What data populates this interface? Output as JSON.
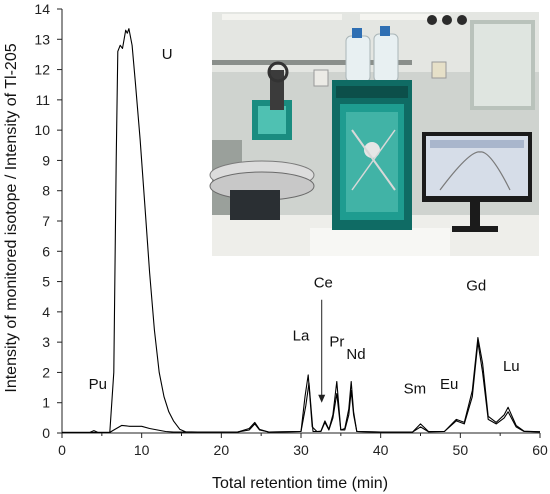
{
  "chart_data": {
    "type": "line",
    "xlabel": "Total retention time (min)",
    "ylabel": "Intensity of monitored isotope / Intensity of Tl-205",
    "xlim": [
      0,
      60
    ],
    "ylim": [
      0,
      14
    ],
    "xticks": [
      0,
      10,
      20,
      30,
      40,
      50,
      60
    ],
    "yticks": [
      0,
      1,
      2,
      3,
      4,
      5,
      6,
      7,
      8,
      9,
      10,
      11,
      12,
      13,
      14
    ],
    "grid": false,
    "series": [
      {
        "x": [
          0,
          3.5,
          4,
          4.5,
          6,
          6.5,
          6.8,
          7.0,
          7.3,
          7.6,
          7.8,
          8.0,
          8.2,
          8.4,
          8.8,
          9.2,
          9.8,
          10.4,
          11.0,
          11.6,
          12.2,
          12.8,
          13.4,
          14.0,
          14.8,
          15.5,
          17,
          22,
          23.5,
          24.2,
          24.8,
          26,
          30,
          30.6,
          31.0,
          31.5,
          32.5,
          33.0,
          33.5,
          34.0,
          34.5,
          35.0,
          35.5,
          36.0,
          36.3,
          36.6,
          37.0,
          40,
          44,
          45,
          46,
          48,
          49.5,
          50.5,
          51.5,
          52.2,
          52.8,
          53.5,
          54.5,
          55.5,
          56.0,
          57.0,
          58,
          60
        ],
        "y": [
          0.02,
          0.02,
          0.08,
          0.02,
          0.02,
          2.0,
          9.0,
          12.6,
          12.8,
          12.7,
          13.0,
          13.3,
          13.2,
          13.35,
          12.8,
          11.6,
          9.7,
          7.5,
          5.3,
          3.4,
          2.0,
          1.2,
          0.7,
          0.4,
          0.12,
          0.04,
          0.03,
          0.03,
          0.15,
          0.35,
          0.12,
          0.03,
          0.05,
          0.9,
          1.65,
          0.05,
          0.05,
          0.35,
          0.1,
          0.5,
          1.3,
          0.1,
          0.1,
          0.6,
          1.4,
          0.6,
          0.05,
          0.03,
          0.03,
          0.2,
          0.04,
          0.05,
          0.4,
          0.3,
          1.2,
          3.0,
          2.0,
          0.45,
          0.3,
          0.5,
          0.7,
          0.2,
          0.05,
          0.04
        ]
      },
      {
        "x": [
          0,
          6,
          6.5,
          7.5,
          8.5,
          10,
          11,
          12,
          13,
          14,
          16,
          22,
          23.5,
          24.2,
          24.8,
          26,
          30,
          30.5,
          30.9,
          31.4,
          32,
          32.5,
          33.0,
          33.5,
          34.0,
          34.5,
          35.0,
          35.5,
          36.0,
          36.3,
          36.6,
          37.0,
          40,
          44,
          45,
          46,
          48,
          49.5,
          50.5,
          51.5,
          52.2,
          52.8,
          53.5,
          54.5,
          55.5,
          56.0,
          57.0,
          58,
          60
        ],
        "y": [
          0.02,
          0.02,
          0.1,
          0.25,
          0.22,
          0.22,
          0.15,
          0.1,
          0.05,
          0.03,
          0.03,
          0.03,
          0.1,
          0.3,
          0.1,
          0.03,
          0.05,
          1.2,
          1.92,
          0.2,
          0.05,
          0.06,
          0.4,
          0.12,
          0.6,
          1.7,
          0.1,
          0.15,
          0.8,
          1.7,
          0.7,
          0.05,
          0.03,
          0.03,
          0.3,
          0.05,
          0.05,
          0.45,
          0.35,
          1.4,
          3.15,
          2.3,
          0.55,
          0.35,
          0.6,
          0.85,
          0.25,
          0.06,
          0.04
        ]
      }
    ],
    "annotations": [
      {
        "text": "Pu",
        "x": 4.5,
        "y": 1.45
      },
      {
        "text": "U",
        "x": 13.2,
        "y": 12.35
      },
      {
        "text": "La",
        "x": 30.0,
        "y": 3.05
      },
      {
        "text": "Ce",
        "x": 32.8,
        "y": 4.8
      },
      {
        "text": "Pr",
        "x": 34.5,
        "y": 2.85
      },
      {
        "text": "Nd",
        "x": 36.9,
        "y": 2.45
      },
      {
        "text": "Sm",
        "x": 44.3,
        "y": 1.3
      },
      {
        "text": "Eu",
        "x": 48.6,
        "y": 1.45
      },
      {
        "text": "Gd",
        "x": 52.0,
        "y": 4.7
      },
      {
        "text": "Lu",
        "x": 56.4,
        "y": 2.05
      }
    ],
    "arrow": {
      "from": [
        32.6,
        4.4
      ],
      "to": [
        32.6,
        1.0
      ]
    },
    "inset_photo": {
      "description_icon": "lab-instrument-photo",
      "colors": {
        "wall": "#d9dcd8",
        "instrument": "#1f8f86",
        "instrument_dark": "#0e5a55",
        "bench": "#f2f2ee",
        "monitor": "#1b1b1b",
        "screen": "#c9d4e6"
      }
    }
  }
}
